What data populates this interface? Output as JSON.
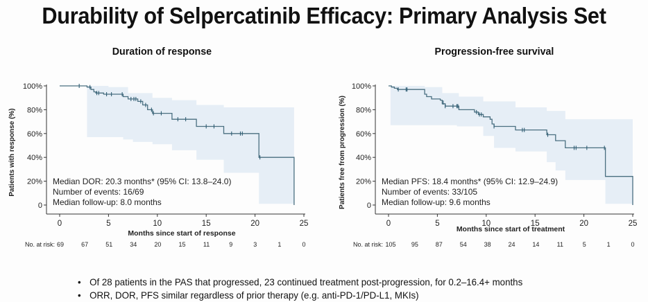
{
  "title": "Durability of Selpercatinib Efficacy: Primary Analysis Set",
  "bullets": [
    "Of 28 patients in the PAS that progressed, 23 continued treatment post-progression, for 0.2–16.4+ months",
    "ORR, DOR, PFS similar regardless of prior therapy (e.g. anti-PD-1/PD-L1, MKIs)"
  ],
  "bullet_glyph": "•",
  "colors": {
    "curve": "#4a6f80",
    "ci_band": "#e6eef6",
    "censor": "#2f5d73",
    "axis": "#333333"
  },
  "chart_data": [
    {
      "type": "line",
      "subtype": "kaplan-meier",
      "title": "Duration of response",
      "xlabel": "Months since start of response",
      "ylabel": "Patients with response (%)",
      "xlim": [
        0,
        25
      ],
      "ylim": [
        0,
        100
      ],
      "xticks": [
        "0",
        "5",
        "10",
        "15",
        "20",
        "25"
      ],
      "yticks": [
        "0",
        "20%",
        "40%",
        "60%",
        "80%",
        "100%"
      ],
      "grid": false,
      "annotations": [
        "Median DOR: 20.3 months* (95% CI: 13.8–24.0)",
        "Number of events: 16/69",
        "Median follow-up: 8.0 months"
      ],
      "risk_label": "No. at risk:",
      "risk_times": [
        0,
        2.5,
        5,
        7.5,
        10,
        12.5,
        15,
        17.5,
        20,
        22.5,
        25
      ],
      "at_risk": [
        "69",
        "67",
        "51",
        "34",
        "20",
        "15",
        "11",
        "9",
        "3",
        "1",
        "0"
      ],
      "curve": [
        [
          0,
          100
        ],
        [
          2.8,
          100
        ],
        [
          2.8,
          99
        ],
        [
          3.2,
          99
        ],
        [
          3.2,
          97
        ],
        [
          3.5,
          97
        ],
        [
          3.5,
          95
        ],
        [
          3.7,
          95
        ],
        [
          3.7,
          94
        ],
        [
          4.5,
          94
        ],
        [
          4.5,
          93
        ],
        [
          6.5,
          93
        ],
        [
          6.5,
          91
        ],
        [
          7.0,
          91
        ],
        [
          7.0,
          89
        ],
        [
          8.0,
          89
        ],
        [
          8.0,
          87
        ],
        [
          8.5,
          87
        ],
        [
          8.5,
          84
        ],
        [
          9.0,
          84
        ],
        [
          9.0,
          80
        ],
        [
          9.5,
          80
        ],
        [
          9.5,
          77
        ],
        [
          11.5,
          77
        ],
        [
          11.5,
          72
        ],
        [
          14.0,
          72
        ],
        [
          14.0,
          66
        ],
        [
          16.8,
          66
        ],
        [
          16.8,
          60
        ],
        [
          20.4,
          60
        ],
        [
          20.4,
          40
        ],
        [
          24.0,
          40
        ],
        [
          24.0,
          0
        ]
      ],
      "censored": [
        [
          2,
          100
        ],
        [
          3.1,
          99
        ],
        [
          3.8,
          94
        ],
        [
          4.0,
          94
        ],
        [
          4.8,
          93
        ],
        [
          5.3,
          93
        ],
        [
          6.4,
          93
        ],
        [
          7.3,
          89
        ],
        [
          7.6,
          89
        ],
        [
          7.8,
          89
        ],
        [
          8.3,
          87
        ],
        [
          8.8,
          84
        ],
        [
          9.4,
          80
        ],
        [
          9.6,
          77
        ],
        [
          10.4,
          77
        ],
        [
          12.1,
          72
        ],
        [
          12.9,
          72
        ],
        [
          15.0,
          66
        ],
        [
          15.8,
          66
        ],
        [
          17.6,
          60
        ],
        [
          18.5,
          60
        ],
        [
          18.7,
          60
        ],
        [
          20.5,
          40
        ]
      ],
      "ci_upper": [
        [
          2.8,
          100
        ],
        [
          5,
          99
        ],
        [
          7,
          94
        ],
        [
          9.5,
          90
        ],
        [
          11.5,
          88
        ],
        [
          14,
          84
        ],
        [
          16.8,
          82
        ],
        [
          24,
          82
        ]
      ],
      "ci_lower": [
        [
          2.8,
          57
        ],
        [
          6,
          57
        ],
        [
          6.5,
          55
        ],
        [
          7.5,
          53
        ],
        [
          9.5,
          51
        ],
        [
          11.5,
          46
        ],
        [
          14,
          38
        ],
        [
          16.8,
          27
        ],
        [
          20.4,
          1
        ],
        [
          24,
          1
        ]
      ]
    },
    {
      "type": "line",
      "subtype": "kaplan-meier",
      "title": "Progression-free survival",
      "xlabel": "Months since start of treatment",
      "ylabel": "Patients free from progression (%)",
      "xlim": [
        0,
        25
      ],
      "ylim": [
        0,
        100
      ],
      "xticks": [
        "0",
        "5",
        "10",
        "15",
        "20",
        "25"
      ],
      "yticks": [
        "0",
        "20%",
        "40%",
        "60%",
        "80%",
        "100%"
      ],
      "grid": false,
      "annotations": [
        "Median PFS: 18.4 months* (95% CI: 12.9–24.9)",
        "Number of events: 33/105",
        "Median follow-up: 9.6 months"
      ],
      "risk_label": "No. at risk:",
      "risk_times": [
        0,
        2.5,
        5,
        7.5,
        10,
        12.5,
        15,
        17.5,
        20,
        22.5,
        25
      ],
      "at_risk": [
        "105",
        "95",
        "87",
        "54",
        "38",
        "24",
        "14",
        "11",
        "5",
        "1",
        "0"
      ],
      "curve": [
        [
          0,
          100
        ],
        [
          0.3,
          100
        ],
        [
          0.3,
          99
        ],
        [
          0.6,
          99
        ],
        [
          0.6,
          98
        ],
        [
          0.9,
          98
        ],
        [
          0.9,
          97
        ],
        [
          3.7,
          97
        ],
        [
          3.7,
          93
        ],
        [
          3.9,
          93
        ],
        [
          3.9,
          91
        ],
        [
          4.4,
          91
        ],
        [
          4.4,
          89
        ],
        [
          5.3,
          89
        ],
        [
          5.3,
          88
        ],
        [
          5.5,
          88
        ],
        [
          5.5,
          85
        ],
        [
          5.8,
          85
        ],
        [
          5.8,
          83
        ],
        [
          7.2,
          83
        ],
        [
          7.2,
          80
        ],
        [
          8.8,
          80
        ],
        [
          8.8,
          78
        ],
        [
          9.2,
          78
        ],
        [
          9.2,
          76
        ],
        [
          9.7,
          76
        ],
        [
          9.7,
          74
        ],
        [
          10.4,
          74
        ],
        [
          10.4,
          72
        ],
        [
          10.6,
          72
        ],
        [
          10.6,
          68
        ],
        [
          10.8,
          68
        ],
        [
          10.8,
          66
        ],
        [
          13.0,
          66
        ],
        [
          13.0,
          63
        ],
        [
          16.2,
          63
        ],
        [
          16.2,
          59
        ],
        [
          17.1,
          59
        ],
        [
          17.1,
          54
        ],
        [
          18.1,
          54
        ],
        [
          18.1,
          48
        ],
        [
          22.2,
          48
        ],
        [
          22.2,
          24
        ],
        [
          25,
          24
        ],
        [
          25,
          0
        ]
      ],
      "censored": [
        [
          1.0,
          97
        ],
        [
          1.8,
          97
        ],
        [
          1.9,
          97
        ],
        [
          5.6,
          86
        ],
        [
          5.8,
          83
        ],
        [
          6.6,
          83
        ],
        [
          7.0,
          83
        ],
        [
          7.1,
          83
        ],
        [
          9.0,
          78
        ],
        [
          9.3,
          76
        ],
        [
          9.5,
          76
        ],
        [
          10.8,
          66
        ],
        [
          13.7,
          63
        ],
        [
          13.9,
          63
        ],
        [
          16.3,
          59
        ],
        [
          19.0,
          48
        ],
        [
          19.2,
          48
        ],
        [
          20.3,
          48
        ],
        [
          22.1,
          48
        ]
      ],
      "ci_upper": [
        [
          0.2,
          100
        ],
        [
          3.7,
          99
        ],
        [
          5.5,
          94
        ],
        [
          7.2,
          91
        ],
        [
          9.7,
          87
        ],
        [
          13,
          82
        ],
        [
          16.2,
          79
        ],
        [
          18.1,
          72
        ],
        [
          25,
          72
        ]
      ],
      "ci_lower": [
        [
          0.2,
          67
        ],
        [
          5,
          67
        ],
        [
          7,
          66
        ],
        [
          9.7,
          58
        ],
        [
          10.8,
          48
        ],
        [
          13,
          45
        ],
        [
          16.2,
          36
        ],
        [
          17.1,
          29
        ],
        [
          18.1,
          21
        ],
        [
          22.2,
          1
        ],
        [
          25,
          1
        ]
      ]
    }
  ]
}
